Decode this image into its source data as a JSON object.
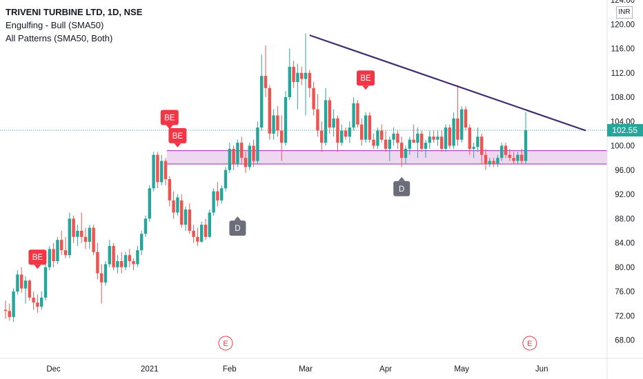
{
  "legend": {
    "title": "TRIVENI TURBINE LTD, 1D, NSE",
    "line2": "Engulfing - Bull (SMA50)",
    "line3": "All Patterns (SMA50, Both)"
  },
  "currency": "INR",
  "price_label": "102.55",
  "colors": {
    "up": "#26a69a",
    "down": "#ef5350",
    "trendline": "#3f2b6e",
    "zone_fill": "#e7c9ec",
    "zone_border": "#9c27b0",
    "be_badge": "#f23645",
    "d_badge": "#6b6e78",
    "price_tag": "#26a69a"
  },
  "badges": {
    "be": "BE",
    "d": "D",
    "e": "E"
  },
  "chart_data": {
    "type": "candlestick",
    "ylim": [
      65,
      124
    ],
    "yticks": [
      "124.00",
      "120.00",
      "116.00",
      "112.00",
      "108.00",
      "104.00",
      "100.00",
      "96.00",
      "92.00",
      "88.00",
      "84.00",
      "80.00",
      "76.00",
      "72.00",
      "68.00"
    ],
    "ytick_values": [
      124,
      120,
      116,
      112,
      108,
      104,
      100,
      96,
      92,
      88,
      84,
      80,
      76,
      72,
      68
    ],
    "xticks": [
      "Dec",
      "2021",
      "Feb",
      "Mar",
      "Apr",
      "May",
      "Jun"
    ],
    "xtick_index": [
      12,
      36,
      56,
      75,
      95,
      114,
      134
    ],
    "last_price": 102.55,
    "trendline": {
      "from": {
        "i": 76,
        "price": 118.2
      },
      "to": {
        "i": 145,
        "price": 102.5
      }
    },
    "support_zone": [
      97.0,
      99.2
    ],
    "candles": [
      [
        73.0,
        74.5,
        71.5,
        72.8
      ],
      [
        72.8,
        74.0,
        71.2,
        71.8
      ],
      [
        71.8,
        76.5,
        71.0,
        76.0
      ],
      [
        76.0,
        79.5,
        75.5,
        78.8
      ],
      [
        78.8,
        80.0,
        75.8,
        76.5
      ],
      [
        76.5,
        78.5,
        74.0,
        77.8
      ],
      [
        77.8,
        78.0,
        74.5,
        75.0
      ],
      [
        75.0,
        76.0,
        73.0,
        74.2
      ],
      [
        74.2,
        75.5,
        72.5,
        73.5
      ],
      [
        73.5,
        76.0,
        73.0,
        75.0
      ],
      [
        75.0,
        80.5,
        74.5,
        80.0
      ],
      [
        80.0,
        83.5,
        79.5,
        83.0
      ],
      [
        83.0,
        84.0,
        80.0,
        81.0
      ],
      [
        81.0,
        85.0,
        80.5,
        84.5
      ],
      [
        84.5,
        86.0,
        82.0,
        82.8
      ],
      [
        82.8,
        85.0,
        81.5,
        82.0
      ],
      [
        82.0,
        89.0,
        81.5,
        88.0
      ],
      [
        88.0,
        88.5,
        84.0,
        85.0
      ],
      [
        85.0,
        87.0,
        83.5,
        86.0
      ],
      [
        86.0,
        89.0,
        84.0,
        85.0
      ],
      [
        85.0,
        86.5,
        83.0,
        84.2
      ],
      [
        84.2,
        87.0,
        83.0,
        86.5
      ],
      [
        86.5,
        87.0,
        82.0,
        82.5
      ],
      [
        82.5,
        84.0,
        78.0,
        79.0
      ],
      [
        79.0,
        80.5,
        74.0,
        77.5
      ],
      [
        77.5,
        81.0,
        77.0,
        80.5
      ],
      [
        80.5,
        84.5,
        80.0,
        83.5
      ],
      [
        83.5,
        84.0,
        79.5,
        80.0
      ],
      [
        80.0,
        82.0,
        79.0,
        81.0
      ],
      [
        81.0,
        82.5,
        79.0,
        80.0
      ],
      [
        80.0,
        82.5,
        79.5,
        82.0
      ],
      [
        82.0,
        83.0,
        80.0,
        81.0
      ],
      [
        81.0,
        81.5,
        79.5,
        80.5
      ],
      [
        80.5,
        83.5,
        80.0,
        82.8
      ],
      [
        82.8,
        86.0,
        82.0,
        85.5
      ],
      [
        85.5,
        88.5,
        85.0,
        88.0
      ],
      [
        88.0,
        93.5,
        87.5,
        93.0
      ],
      [
        93.0,
        99.0,
        92.5,
        98.5
      ],
      [
        98.5,
        99.0,
        93.0,
        94.0
      ],
      [
        94.0,
        98.5,
        93.5,
        97.5
      ],
      [
        97.5,
        98.0,
        93.5,
        94.5
      ],
      [
        94.5,
        95.0,
        90.0,
        91.0
      ],
      [
        91.0,
        92.5,
        88.0,
        89.0
      ],
      [
        89.0,
        92.0,
        88.5,
        91.5
      ],
      [
        91.0,
        92.0,
        86.5,
        87.0
      ],
      [
        87.0,
        90.0,
        86.0,
        89.5
      ],
      [
        89.5,
        90.5,
        85.5,
        86.0
      ],
      [
        86.0,
        87.0,
        84.0,
        85.0
      ],
      [
        85.0,
        86.5,
        83.5,
        84.2
      ],
      [
        84.2,
        87.5,
        84.0,
        87.0
      ],
      [
        87.0,
        88.0,
        84.5,
        85.0
      ],
      [
        85.0,
        89.5,
        84.8,
        89.0
      ],
      [
        89.0,
        93.0,
        88.5,
        92.5
      ],
      [
        92.5,
        94.0,
        90.0,
        91.0
      ],
      [
        91.0,
        93.5,
        90.5,
        93.0
      ],
      [
        93.0,
        96.5,
        92.5,
        96.0
      ],
      [
        96.0,
        100.5,
        95.5,
        99.5
      ],
      [
        99.5,
        100.0,
        96.0,
        97.0
      ],
      [
        97.0,
        101.0,
        96.5,
        100.5
      ],
      [
        100.5,
        101.5,
        97.0,
        98.0
      ],
      [
        98.0,
        99.0,
        95.5,
        96.5
      ],
      [
        96.5,
        100.5,
        96.0,
        100.0
      ],
      [
        100.0,
        101.0,
        96.5,
        97.5
      ],
      [
        97.5,
        104.0,
        97.0,
        103.0
      ],
      [
        103.0,
        115.0,
        102.5,
        111.5
      ],
      [
        111.5,
        116.5,
        108.0,
        109.5
      ],
      [
        109.5,
        110.0,
        101.0,
        102.0
      ],
      [
        102.0,
        106.0,
        101.0,
        105.0
      ],
      [
        105.0,
        106.5,
        101.5,
        102.5
      ],
      [
        102.5,
        105.0,
        97.5,
        100.5
      ],
      [
        100.5,
        109.0,
        100.0,
        108.0
      ],
      [
        108.0,
        116.0,
        107.5,
        113.0
      ],
      [
        113.0,
        114.0,
        109.5,
        110.5
      ],
      [
        110.5,
        113.5,
        106.0,
        112.0
      ],
      [
        112.0,
        113.0,
        110.0,
        111.0
      ],
      [
        111.0,
        118.5,
        105.0,
        112.0
      ],
      [
        112.0,
        112.5,
        108.0,
        109.5
      ],
      [
        109.5,
        110.5,
        105.0,
        106.0
      ],
      [
        106.0,
        108.5,
        101.5,
        102.5
      ],
      [
        102.5,
        104.0,
        99.0,
        100.5
      ],
      [
        100.5,
        109.5,
        100.0,
        107.5
      ],
      [
        107.5,
        108.0,
        102.0,
        103.0
      ],
      [
        103.0,
        106.0,
        101.5,
        104.5
      ],
      [
        104.5,
        105.0,
        99.0,
        100.5
      ],
      [
        100.5,
        103.5,
        100.0,
        102.5
      ],
      [
        102.5,
        103.0,
        101.0,
        101.5
      ],
      [
        101.5,
        104.0,
        100.5,
        103.0
      ],
      [
        103.0,
        108.0,
        102.5,
        107.0
      ],
      [
        107.0,
        107.5,
        103.0,
        103.5
      ],
      [
        103.5,
        104.5,
        100.0,
        101.0
      ],
      [
        101.0,
        105.5,
        100.5,
        105.0
      ],
      [
        105.0,
        105.5,
        100.5,
        101.0
      ],
      [
        101.0,
        102.0,
        99.5,
        100.0
      ],
      [
        100.0,
        103.0,
        99.5,
        102.5
      ],
      [
        102.5,
        103.5,
        100.5,
        101.0
      ],
      [
        101.0,
        102.5,
        99.0,
        99.5
      ],
      [
        99.5,
        101.5,
        97.5,
        101.0
      ],
      [
        101.0,
        103.0,
        100.0,
        102.0
      ],
      [
        102.0,
        102.5,
        99.5,
        100.5
      ],
      [
        100.5,
        101.5,
        96.5,
        98.0
      ],
      [
        98.0,
        100.0,
        97.0,
        99.5
      ],
      [
        99.5,
        101.5,
        98.5,
        101.0
      ],
      [
        101.0,
        103.5,
        100.5,
        100.5
      ],
      [
        100.5,
        103.0,
        98.0,
        102.0
      ],
      [
        102.0,
        102.5,
        99.0,
        99.5
      ],
      [
        99.5,
        101.0,
        98.0,
        100.5
      ],
      [
        100.5,
        102.5,
        99.5,
        101.5
      ],
      [
        101.5,
        102.5,
        100.5,
        101.0
      ],
      [
        101.0,
        102.5,
        100.0,
        101.5
      ],
      [
        101.5,
        102.5,
        99.0,
        99.5
      ],
      [
        99.5,
        103.5,
        99.0,
        103.0
      ],
      [
        103.0,
        103.5,
        99.5,
        100.0
      ],
      [
        100.0,
        105.5,
        99.5,
        104.5
      ],
      [
        104.5,
        110.0,
        100.0,
        101.0
      ],
      [
        101.0,
        106.5,
        100.5,
        106.0
      ],
      [
        106.0,
        106.5,
        102.5,
        103.0
      ],
      [
        103.0,
        103.5,
        98.5,
        99.5
      ],
      [
        99.5,
        100.5,
        98.0,
        99.8
      ],
      [
        99.8,
        103.0,
        99.0,
        101.5
      ],
      [
        101.5,
        102.0,
        97.0,
        98.5
      ],
      [
        98.5,
        99.5,
        96.0,
        97.0
      ],
      [
        97.0,
        98.0,
        96.5,
        97.5
      ],
      [
        97.5,
        98.0,
        96.5,
        97.0
      ],
      [
        97.0,
        98.5,
        96.5,
        98.0
      ],
      [
        98.0,
        100.5,
        97.5,
        100.0
      ],
      [
        100.0,
        100.5,
        98.0,
        98.5
      ],
      [
        98.5,
        99.5,
        97.5,
        98.0
      ],
      [
        98.0,
        99.0,
        97.0,
        97.5
      ],
      [
        97.5,
        99.0,
        97.0,
        98.5
      ],
      [
        98.5,
        99.5,
        97.0,
        97.5
      ],
      [
        97.5,
        105.5,
        97.0,
        102.55
      ]
    ],
    "be_markers": [
      {
        "i": 8,
        "side": "above",
        "price": 79.5
      },
      {
        "i": 41,
        "side": "above",
        "price": 102.5
      },
      {
        "i": 43,
        "side": "above",
        "price": 99.5
      },
      {
        "i": 90,
        "side": "above",
        "price": 109.0
      }
    ],
    "d_markers": [
      {
        "i": 58,
        "side": "below",
        "price": 89.5
      },
      {
        "i": 99,
        "side": "below",
        "price": 96.0
      }
    ],
    "e_markers": [
      {
        "i": 55
      },
      {
        "i": 131
      }
    ]
  }
}
